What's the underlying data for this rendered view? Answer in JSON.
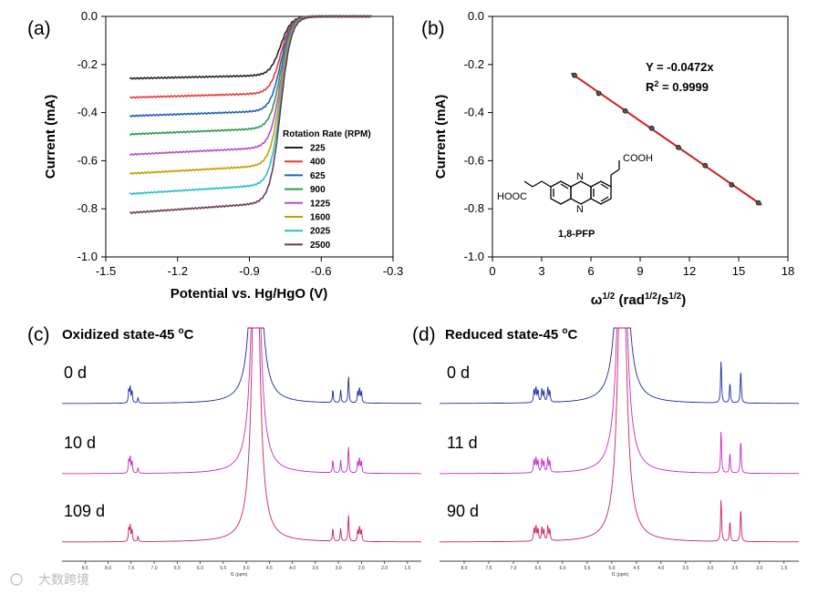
{
  "watermark": "大数跨境",
  "chart_data": [
    {
      "panel": "(a)",
      "type": "line",
      "xlabel": "Potential vs. Hg/HgO (V)",
      "ylabel": "Current (mA)",
      "xlim": [
        -1.5,
        -0.3
      ],
      "ylim": [
        -1.0,
        0.0
      ],
      "xticks": [
        "-1.5",
        "-1.2",
        "-0.9",
        "-0.6",
        "-0.3"
      ],
      "yticks": [
        "0.0",
        "-0.2",
        "-0.4",
        "-0.6",
        "-0.8",
        "-1.0"
      ],
      "legend_title": "Rotation Rate (RPM)",
      "half_wave_potential": -0.77,
      "x_start": -1.4,
      "x_end": -0.39,
      "series": [
        {
          "name": "225",
          "limiting_current": -0.245,
          "color": "#222222"
        },
        {
          "name": "400",
          "limiting_current": -0.32,
          "color": "#e8383b"
        },
        {
          "name": "625",
          "limiting_current": -0.393,
          "color": "#1f5fbf"
        },
        {
          "name": "900",
          "limiting_current": -0.465,
          "color": "#2a9a4a"
        },
        {
          "name": "1225",
          "limiting_current": -0.545,
          "color": "#b350c8"
        },
        {
          "name": "1600",
          "limiting_current": -0.62,
          "color": "#c2a000"
        },
        {
          "name": "2025",
          "limiting_current": -0.7,
          "color": "#27c0c8"
        },
        {
          "name": "2500",
          "limiting_current": -0.775,
          "color": "#6a3a55"
        }
      ]
    },
    {
      "panel": "(b)",
      "type": "scatter",
      "xlabel_main": "ω",
      "xlabel_sup1": "1/2",
      "xlabel_mid": " (rad",
      "xlabel_sup2": "1/2",
      "xlabel_mid2": "/s",
      "xlabel_sup3": "1/2",
      "xlabel_end": ")",
      "ylabel": "Current (mA)",
      "xlim": [
        0,
        18
      ],
      "ylim": [
        -1.0,
        0.0
      ],
      "xticks": [
        "0",
        "3",
        "6",
        "9",
        "12",
        "15",
        "18"
      ],
      "yticks": [
        "0.0",
        "-0.2",
        "-0.4",
        "-0.6",
        "-0.8",
        "-1.0"
      ],
      "x": [
        5.0,
        6.48,
        8.09,
        9.7,
        11.33,
        12.96,
        14.57,
        16.2
      ],
      "y": [
        -0.245,
        -0.32,
        -0.393,
        -0.465,
        -0.545,
        -0.62,
        -0.7,
        -0.775
      ],
      "fit": {
        "slope": -0.0472,
        "x_range": [
          4.8,
          16.4
        ]
      },
      "equation": "Y = -0.0472x",
      "r2_prefix": "R",
      "r2_sup": "2",
      "r2_value": " = 0.9999",
      "line_color": "#cc1f1f",
      "molecule": {
        "name": "1,8-PFP",
        "left_group": "HOOC",
        "right_group": "COOH",
        "atom": "N"
      }
    },
    {
      "panel": "(c)",
      "type": "nmr",
      "title_main": "Oxidized state-45 ",
      "title_sup": "o",
      "title_end": "C",
      "axis_label": "f1 (ppm)",
      "xticks": [
        "8.5",
        "8.0",
        "7.5",
        "7.0",
        "6.5",
        "6.0",
        "5.5",
        "5.0",
        "4.5",
        "4.0",
        "3.5",
        "3.0",
        "2.5",
        "2.0",
        "1.5"
      ],
      "spectra": [
        {
          "label": "0 d",
          "color": "#1c2a9e"
        },
        {
          "label": "10 d",
          "color": "#c42ac0"
        },
        {
          "label": "109 d",
          "color": "#c8225e"
        }
      ],
      "peaks": [
        {
          "ppm": 7.55,
          "h": 14
        },
        {
          "ppm": 7.52,
          "h": 17
        },
        {
          "ppm": 7.48,
          "h": 13
        },
        {
          "ppm": 7.35,
          "h": 6
        },
        {
          "ppm": 3.12,
          "h": 14
        },
        {
          "ppm": 2.95,
          "h": 14
        },
        {
          "ppm": 2.78,
          "h": 30
        },
        {
          "ppm": 2.58,
          "h": 12
        },
        {
          "ppm": 2.54,
          "h": 16
        },
        {
          "ppm": 2.5,
          "h": 12
        }
      ],
      "water_ppm": 4.79
    },
    {
      "panel": "(d)",
      "type": "nmr",
      "title_main": "Reduced state-45 ",
      "title_sup": "o",
      "title_end": "C",
      "axis_label": "f1 (ppm)",
      "xticks": [
        "8.0",
        "7.5",
        "7.0",
        "6.5",
        "6.0",
        "5.5",
        "5.0",
        "4.5",
        "4.0",
        "3.5",
        "3.0",
        "2.5",
        "2.0",
        "1.5"
      ],
      "spectra": [
        {
          "label": "0 d",
          "color": "#1c2a9e"
        },
        {
          "label": "11 d",
          "color": "#c42ac0"
        },
        {
          "label": "90 d",
          "color": "#c8225e"
        }
      ],
      "peaks": [
        {
          "ppm": 6.58,
          "h": 14
        },
        {
          "ppm": 6.54,
          "h": 16
        },
        {
          "ppm": 6.5,
          "h": 13
        },
        {
          "ppm": 6.42,
          "h": 15
        },
        {
          "ppm": 6.38,
          "h": 12
        },
        {
          "ppm": 6.3,
          "h": 16
        },
        {
          "ppm": 6.26,
          "h": 12
        },
        {
          "ppm": 2.78,
          "h": 46
        },
        {
          "ppm": 2.6,
          "h": 22
        },
        {
          "ppm": 2.38,
          "h": 36
        }
      ],
      "water_ppm": 4.79
    }
  ]
}
